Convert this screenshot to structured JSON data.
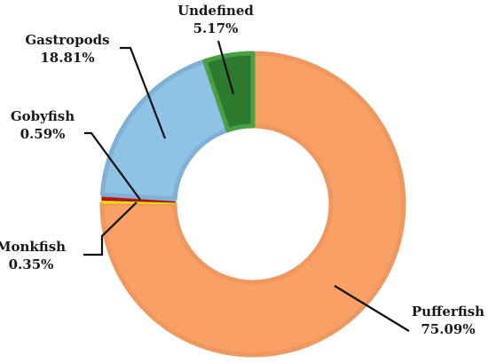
{
  "chart_data": {
    "type": "pie",
    "variant": "donut",
    "title": "",
    "categories": [
      "Pufferfish",
      "Monkfish",
      "Gobyfish",
      "Gastropods",
      "Undefined"
    ],
    "values": [
      75.09,
      0.35,
      0.59,
      18.81,
      5.17
    ],
    "value_labels": [
      "75.09%",
      "0.35%",
      "0.59%",
      "18.81%",
      "5.17%"
    ],
    "colors": [
      "#F9A066",
      "#F5E10C",
      "#C01418",
      "#8EC3E6",
      "#2E7A2E"
    ],
    "border_colors": [
      "#EC9860",
      "#E0CE10",
      "#A81015",
      "#80B0D4",
      "#49A047"
    ],
    "start_angle_deg": 0,
    "direction": "clockwise",
    "legend": "none"
  }
}
